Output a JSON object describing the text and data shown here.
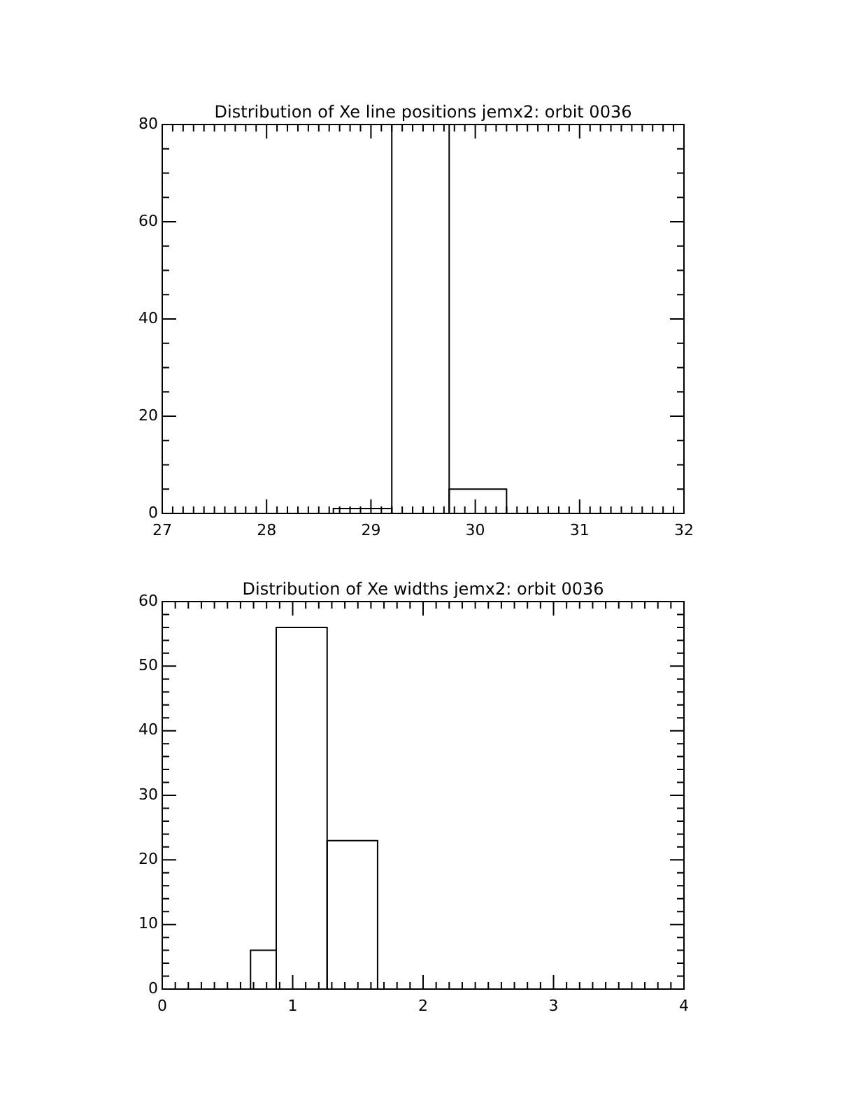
{
  "chart_data": [
    {
      "type": "histogram",
      "title": "Distribution of Xe line positions jemx2: orbit 0036",
      "bins": [
        28.64,
        29.2,
        29.75,
        30.3
      ],
      "values": [
        1,
        80,
        5
      ],
      "color": "#000000",
      "xlim": [
        27,
        32
      ],
      "xticks": [
        27,
        {
          "value": 27.1,
          "label": null
        },
        {
          "value": 27.2,
          "label": null
        },
        {
          "value": 27.3,
          "label": null
        },
        {
          "value": 27.4,
          "label": null
        },
        {
          "value": 27.5,
          "label": null
        },
        {
          "value": 27.6,
          "label": null
        },
        {
          "value": 27.7,
          "label": null
        },
        {
          "value": 27.8,
          "label": null
        },
        {
          "value": 27.9,
          "label": null
        },
        28,
        {
          "value": 28.1,
          "label": null
        },
        {
          "value": 28.2,
          "label": null
        },
        {
          "value": 28.3,
          "label": null
        },
        {
          "value": 28.4,
          "label": null
        },
        {
          "value": 28.5,
          "label": null
        },
        {
          "value": 28.6,
          "label": null
        },
        {
          "value": 28.7,
          "label": null
        },
        {
          "value": 28.8,
          "label": null
        },
        {
          "value": 28.9,
          "label": null
        },
        29,
        {
          "value": 29.1,
          "label": null
        },
        {
          "value": 29.2,
          "label": null
        },
        {
          "value": 29.3,
          "label": null
        },
        {
          "value": 29.4,
          "label": null
        },
        {
          "value": 29.5,
          "label": null
        },
        {
          "value": 29.6,
          "label": null
        },
        {
          "value": 29.7,
          "label": null
        },
        {
          "value": 29.8,
          "label": null
        },
        {
          "value": 29.9,
          "label": null
        },
        30,
        {
          "value": 30.1,
          "label": null
        },
        {
          "value": 30.2,
          "label": null
        },
        {
          "value": 30.3,
          "label": null
        },
        {
          "value": 30.4,
          "label": null
        },
        {
          "value": 30.5,
          "label": null
        },
        {
          "value": 30.6,
          "label": null
        },
        {
          "value": 30.7,
          "label": null
        },
        {
          "value": 30.8,
          "label": null
        },
        {
          "value": 30.9,
          "label": null
        },
        31,
        {
          "value": 31.1,
          "label": null
        },
        {
          "value": 31.2,
          "label": null
        },
        {
          "value": 31.3,
          "label": null
        },
        {
          "value": 31.4,
          "label": null
        },
        {
          "value": 31.5,
          "label": null
        },
        {
          "value": 31.6,
          "label": null
        },
        {
          "value": 31.7,
          "label": null
        },
        {
          "value": 31.8,
          "label": null
        },
        {
          "value": 31.9,
          "label": null
        },
        32
      ],
      "ylim": [
        0,
        80
      ],
      "yticks": [
        0,
        {
          "value": 5,
          "label": null
        },
        {
          "value": 10,
          "label": null
        },
        {
          "value": 15,
          "label": null
        },
        20,
        {
          "value": 25,
          "label": null
        },
        {
          "value": 30,
          "label": null
        },
        {
          "value": 35,
          "label": null
        },
        40,
        {
          "value": 45,
          "label": null
        },
        {
          "value": 50,
          "label": null
        },
        {
          "value": 55,
          "label": null
        },
        60,
        {
          "value": 65,
          "label": null
        },
        {
          "value": 70,
          "label": null
        },
        {
          "value": 75,
          "label": null
        },
        80
      ],
      "grid": false,
      "legend": false
    },
    {
      "type": "histogram",
      "title": "Distribution of Xe widths jemx2: orbit 0036",
      "bins": [
        0.677,
        0.874,
        1.264,
        1.651
      ],
      "values": [
        6,
        56,
        23
      ],
      "color": "#000000",
      "xlim": [
        0,
        4
      ],
      "xticks": [
        0,
        {
          "value": 0.1,
          "label": null
        },
        {
          "value": 0.2,
          "label": null
        },
        {
          "value": 0.3,
          "label": null
        },
        {
          "value": 0.4,
          "label": null
        },
        {
          "value": 0.5,
          "label": null
        },
        {
          "value": 0.6,
          "label": null
        },
        {
          "value": 0.7,
          "label": null
        },
        {
          "value": 0.8,
          "label": null
        },
        {
          "value": 0.9,
          "label": null
        },
        1,
        {
          "value": 1.1,
          "label": null
        },
        {
          "value": 1.2,
          "label": null
        },
        {
          "value": 1.3,
          "label": null
        },
        {
          "value": 1.4,
          "label": null
        },
        {
          "value": 1.5,
          "label": null
        },
        {
          "value": 1.6,
          "label": null
        },
        {
          "value": 1.7,
          "label": null
        },
        {
          "value": 1.8,
          "label": null
        },
        {
          "value": 1.9,
          "label": null
        },
        2,
        {
          "value": 2.1,
          "label": null
        },
        {
          "value": 2.2,
          "label": null
        },
        {
          "value": 2.3,
          "label": null
        },
        {
          "value": 2.4,
          "label": null
        },
        {
          "value": 2.5,
          "label": null
        },
        {
          "value": 2.6,
          "label": null
        },
        {
          "value": 2.7,
          "label": null
        },
        {
          "value": 2.8,
          "label": null
        },
        {
          "value": 2.9,
          "label": null
        },
        3,
        {
          "value": 3.1,
          "label": null
        },
        {
          "value": 3.2,
          "label": null
        },
        {
          "value": 3.3,
          "label": null
        },
        {
          "value": 3.4,
          "label": null
        },
        {
          "value": 3.5,
          "label": null
        },
        {
          "value": 3.6,
          "label": null
        },
        {
          "value": 3.7,
          "label": null
        },
        {
          "value": 3.8,
          "label": null
        },
        {
          "value": 3.9,
          "label": null
        },
        4
      ],
      "ylim": [
        0,
        60
      ],
      "yticks": [
        0,
        {
          "value": 2,
          "label": null
        },
        {
          "value": 4,
          "label": null
        },
        {
          "value": 6,
          "label": null
        },
        {
          "value": 8,
          "label": null
        },
        10,
        {
          "value": 12,
          "label": null
        },
        {
          "value": 14,
          "label": null
        },
        {
          "value": 16,
          "label": null
        },
        {
          "value": 18,
          "label": null
        },
        20,
        {
          "value": 22,
          "label": null
        },
        {
          "value": 24,
          "label": null
        },
        {
          "value": 26,
          "label": null
        },
        {
          "value": 28,
          "label": null
        },
        30,
        {
          "value": 32,
          "label": null
        },
        {
          "value": 34,
          "label": null
        },
        {
          "value": 36,
          "label": null
        },
        {
          "value": 38,
          "label": null
        },
        40,
        {
          "value": 42,
          "label": null
        },
        {
          "value": 44,
          "label": null
        },
        {
          "value": 46,
          "label": null
        },
        {
          "value": 48,
          "label": null
        },
        50,
        {
          "value": 52,
          "label": null
        },
        {
          "value": 54,
          "label": null
        },
        {
          "value": 56,
          "label": null
        },
        {
          "value": 58,
          "label": null
        },
        60
      ],
      "grid": false,
      "legend": false
    }
  ]
}
